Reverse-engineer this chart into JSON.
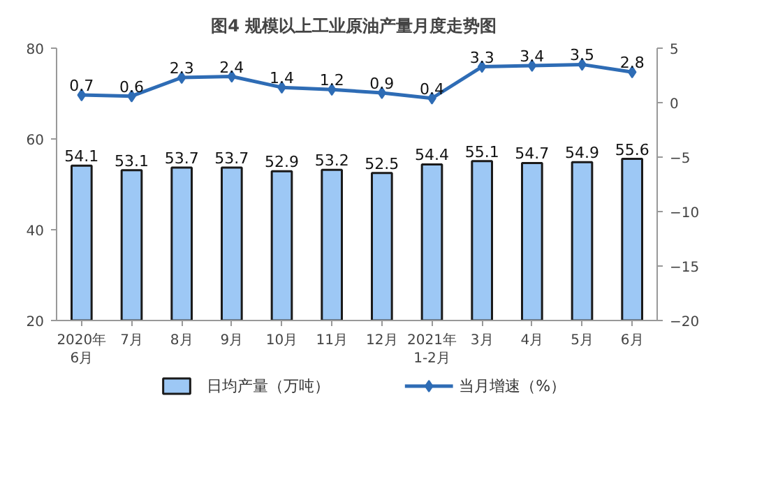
{
  "chart_data": {
    "type": "bar",
    "title": "图4  规模以上工业原油产量月度走势图",
    "categories": [
      "2020年\n6月",
      "7月",
      "8月",
      "9月",
      "10月",
      "11月",
      "12月",
      "2021年\n1-2月",
      "3月",
      "4月",
      "5月",
      "6月"
    ],
    "series": [
      {
        "name": "日均产量（万吨）",
        "color": "#9dc8f5",
        "values": [
          54.1,
          53.1,
          53.7,
          53.7,
          52.9,
          53.2,
          52.5,
          54.4,
          55.1,
          54.7,
          54.9,
          55.6
        ]
      },
      {
        "name": "当月增速（%）",
        "type": "line",
        "axis": "y2",
        "color": "#2e6cb5",
        "marker": "diamond",
        "values": [
          0.7,
          0.6,
          2.3,
          2.4,
          1.4,
          1.2,
          0.9,
          0.4,
          3.3,
          3.4,
          3.5,
          2.8
        ]
      }
    ],
    "ylim": [
      20,
      80
    ],
    "yticks": [
      20,
      40,
      60,
      80
    ],
    "y2lim": [
      -20,
      5
    ],
    "y2ticks": [
      -20,
      -15,
      -10,
      -5,
      0,
      5
    ],
    "data_labels": true,
    "legend": "bottom",
    "grid": false
  }
}
